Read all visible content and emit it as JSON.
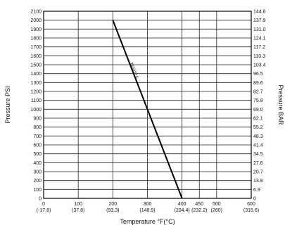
{
  "chart_data": {
    "type": "line",
    "xlabel": "Temperature °F(°C)",
    "ylabel_left": "Pressure PSI",
    "ylabel_right": "Pressure BAR",
    "xlim": [
      0,
      600
    ],
    "ylim": [
      0,
      2100
    ],
    "grid": true,
    "x_ticks": [
      {
        "value": 0,
        "label": "0",
        "sub": "(-17.8)"
      },
      {
        "value": 100,
        "label": "100",
        "sub": "(37.8)"
      },
      {
        "value": 200,
        "label": "200",
        "sub": "(93.3)"
      },
      {
        "value": 300,
        "label": "300",
        "sub": "(148.9)"
      },
      {
        "value": 400,
        "label": "400",
        "sub": "(204.4)"
      },
      {
        "value": 450,
        "label": "450",
        "sub": "(232.2)"
      },
      {
        "value": 500,
        "label": "500",
        "sub": "(260)"
      },
      {
        "value": 600,
        "label": "600",
        "sub": "(315.6)"
      }
    ],
    "y_left_ticks": [
      0,
      100,
      200,
      300,
      400,
      500,
      600,
      700,
      800,
      900,
      1000,
      1100,
      1200,
      1300,
      1400,
      1500,
      1600,
      1700,
      1800,
      1900,
      2000,
      2100
    ],
    "y_right_ticks": [
      "0",
      "6.9",
      "13.8",
      "20.7",
      "27.6",
      "34.5",
      "41.4",
      "48.3",
      "55.2",
      "62.1",
      "69.0",
      "75.8",
      "82.7",
      "89.6",
      "96.5",
      "103.4",
      "110.3",
      "117.2",
      "124.1",
      "131.0",
      "137.9",
      "144.8"
    ],
    "series": [
      {
        "name": "TFM-215",
        "x": [
          200,
          400
        ],
        "y": [
          2000,
          0
        ]
      }
    ],
    "annotation": {
      "text": "TFM215",
      "x": 265,
      "y": 1430
    }
  }
}
